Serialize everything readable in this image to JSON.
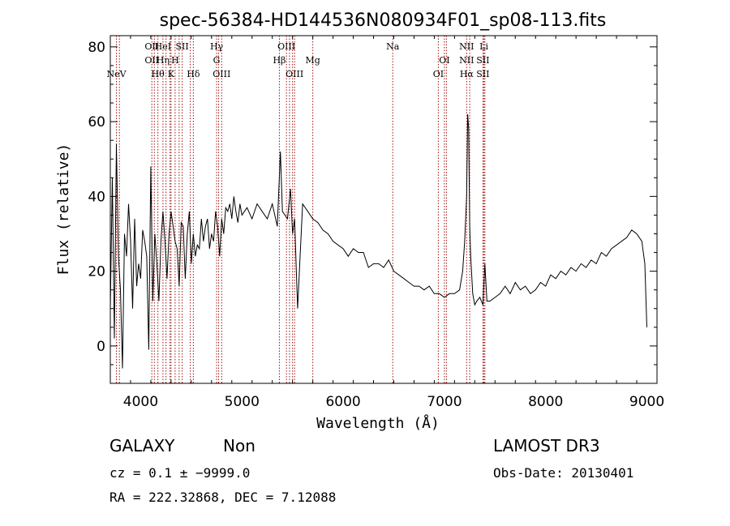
{
  "chart_data": {
    "type": "line",
    "title": "spec-56384-HD144536N080934F01_sp08-113.fits",
    "xlabel": "Wavelength (Å)",
    "ylabel": "Flux (relative)",
    "xlim": [
      3700,
      9100
    ],
    "ylim": [
      -10,
      83
    ],
    "x_ticks": [
      4000,
      5000,
      6000,
      7000,
      8000,
      9000
    ],
    "y_ticks": [
      0,
      20,
      40,
      60,
      80
    ],
    "series": [
      {
        "x": [
          3700,
          3720,
          3740,
          3760,
          3780,
          3800,
          3820,
          3840,
          3860,
          3880,
          3900,
          3920,
          3940,
          3960,
          3980,
          4000,
          4020,
          4040,
          4060,
          4080,
          4100,
          4120,
          4140,
          4160,
          4180,
          4200,
          4220,
          4240,
          4260,
          4280,
          4300,
          4320,
          4340,
          4360,
          4380,
          4400,
          4420,
          4440,
          4460,
          4480,
          4500,
          4520,
          4540,
          4560,
          4580,
          4600,
          4620,
          4640,
          4660,
          4680,
          4700,
          4720,
          4740,
          4760,
          4780,
          4800,
          4820,
          4840,
          4860,
          4880,
          4900,
          4920,
          4940,
          4960,
          4980,
          5000,
          5050,
          5100,
          5150,
          5200,
          5250,
          5300,
          5350,
          5380,
          5400,
          5450,
          5480,
          5500,
          5520,
          5550,
          5600,
          5650,
          5700,
          5750,
          5800,
          5850,
          5900,
          5950,
          6000,
          6050,
          6100,
          6150,
          6200,
          6250,
          6300,
          6350,
          6400,
          6450,
          6500,
          6550,
          6600,
          6650,
          6700,
          6750,
          6800,
          6850,
          6900,
          6950,
          7000,
          7050,
          7100,
          7150,
          7180,
          7200,
          7220,
          7230,
          7240,
          7250,
          7260,
          7280,
          7300,
          7320,
          7350,
          7380,
          7400,
          7420,
          7450,
          7500,
          7550,
          7600,
          7650,
          7700,
          7750,
          7800,
          7850,
          7900,
          7950,
          8000,
          8050,
          8100,
          8150,
          8200,
          8250,
          8300,
          8350,
          8400,
          8450,
          8500,
          8550,
          8600,
          8650,
          8700,
          8750,
          8800,
          8850,
          8900,
          8950,
          8980,
          9000
        ],
        "values": [
          10,
          45,
          2,
          54,
          24,
          15,
          -6,
          30,
          24,
          38,
          28,
          10,
          34,
          16,
          22,
          18,
          31,
          28,
          24,
          -1,
          48,
          12,
          30,
          22,
          12,
          28,
          36,
          28,
          18,
          30,
          36,
          32,
          28,
          26,
          16,
          33,
          32,
          18,
          30,
          36,
          22,
          30,
          24,
          27,
          26,
          34,
          28,
          32,
          34,
          26,
          30,
          28,
          36,
          32,
          24,
          34,
          30,
          37,
          36,
          38,
          34,
          40,
          36,
          33,
          38,
          35,
          37,
          34,
          38,
          36,
          34,
          38,
          32,
          52,
          36,
          34,
          42,
          30,
          34,
          10,
          38,
          36,
          34,
          33,
          31,
          30,
          28,
          27,
          26,
          24,
          26,
          25,
          25,
          21,
          22,
          22,
          21,
          23,
          20,
          19,
          18,
          17,
          16,
          16,
          15,
          16,
          14,
          14,
          13,
          14,
          14,
          15,
          20,
          28,
          40,
          62,
          58,
          32,
          24,
          14,
          11,
          12,
          13,
          11,
          22,
          12,
          12,
          13,
          14,
          16,
          14,
          17,
          15,
          16,
          14,
          15,
          17,
          16,
          19,
          18,
          20,
          19,
          21,
          20,
          22,
          21,
          23,
          22,
          25,
          24,
          26,
          27,
          28,
          29,
          31,
          30,
          28,
          22,
          5
        ]
      }
    ],
    "line_markers": [
      {
        "label": "NeV",
        "wavelength": 3760,
        "row": 2
      },
      {
        "label": "OII",
        "wavelength": 4110,
        "row": 0
      },
      {
        "label": "OII",
        "wavelength": 4110,
        "row": 1
      },
      {
        "label": "Hθ",
        "wavelength": 4170,
        "row": 2
      },
      {
        "label": "HeI",
        "wavelength": 4220,
        "row": 0
      },
      {
        "label": "Hη",
        "wavelength": 4220,
        "row": 1
      },
      {
        "label": "K",
        "wavelength": 4300,
        "row": 2
      },
      {
        "label": "H",
        "wavelength": 4340,
        "row": 1
      },
      {
        "label": "SII",
        "wavelength": 4410,
        "row": 0
      },
      {
        "label": "Hδ",
        "wavelength": 4520,
        "row": 2
      },
      {
        "label": "Hγ",
        "wavelength": 4750,
        "row": 0
      },
      {
        "label": "G",
        "wavelength": 4750,
        "row": 1
      },
      {
        "label": "OIII",
        "wavelength": 4800,
        "row": 2
      },
      {
        "label": "OIII",
        "wavelength": 5440,
        "row": 0
      },
      {
        "label": "Hβ",
        "wavelength": 5370,
        "row": 1
      },
      {
        "label": "OIII",
        "wavelength": 5520,
        "row": 2
      },
      {
        "label": "Mg",
        "wavelength": 5700,
        "row": 1
      },
      {
        "label": "Na",
        "wavelength": 6490,
        "row": 0
      },
      {
        "label": "OI",
        "wavelength": 7000,
        "row": 1
      },
      {
        "label": "OI",
        "wavelength": 6940,
        "row": 2
      },
      {
        "label": "NII",
        "wavelength": 7220,
        "row": 0
      },
      {
        "label": "NII",
        "wavelength": 7220,
        "row": 1
      },
      {
        "label": "Hα",
        "wavelength": 7220,
        "row": 2
      },
      {
        "label": "Li",
        "wavelength": 7390,
        "row": 0
      },
      {
        "label": "SII",
        "wavelength": 7380,
        "row": 1
      },
      {
        "label": "SII",
        "wavelength": 7380,
        "row": 2
      }
    ],
    "extra_marker_lines": [
      3790,
      4135,
      4250,
      4290,
      4380,
      4490,
      4770,
      5470,
      5500,
      7020,
      7250,
      7400
    ]
  },
  "info": {
    "class": "GALAXY",
    "subclass": "Non",
    "survey": "LAMOST DR3",
    "cz": "cz = 0.1 ± −9999.0",
    "obs_date": "Obs-Date: 20130401",
    "radec": "RA = 222.32868, DEC =    7.12088"
  },
  "colors": {
    "spectrum": "#000000",
    "marker": "#a01010",
    "axis": "#000000"
  }
}
